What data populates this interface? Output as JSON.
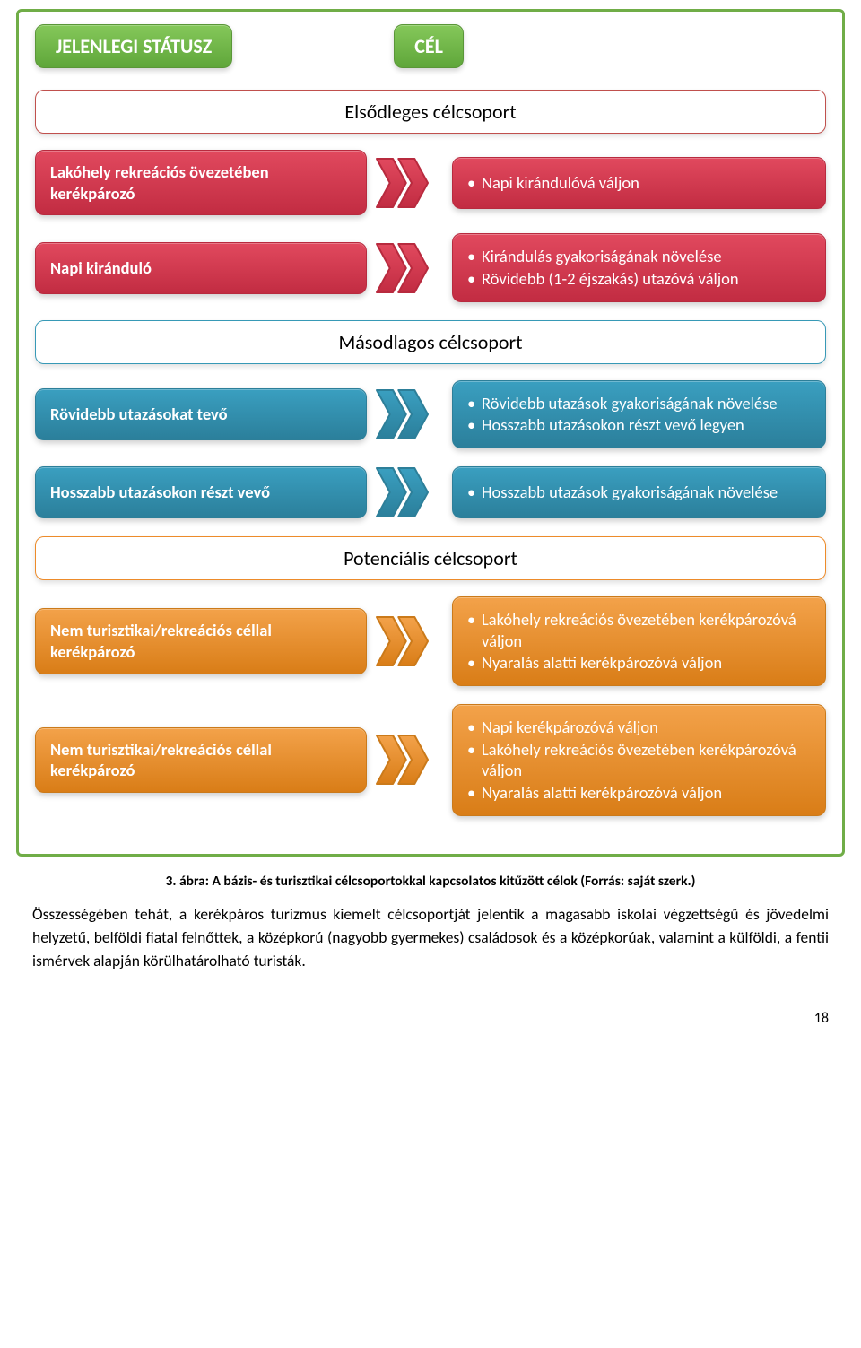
{
  "colors": {
    "frame_border": "#70ad47",
    "header_green_bg": "linear-gradient(#85c85a,#5fa63a)",
    "header_green_border": "#5a9638",
    "red_bg": "linear-gradient(#e1495e,#c22c42)",
    "red_stroke": "#b82a3e",
    "red_band_border": "#c0504d",
    "teal_bg": "linear-gradient(#3a9fc0,#2b7f9b)",
    "teal_stroke": "#2d7f99",
    "teal_band_border": "#3799b6",
    "orange_bg": "linear-gradient(#f3a24a,#d97d17)",
    "orange_stroke": "#cb7a1a",
    "orange_band_border": "#ed8b2a"
  },
  "header": {
    "status": "JELENLEGI STÁTUSZ",
    "goal": "CÉL"
  },
  "sections": [
    {
      "band": "Elsődleges célcsoport",
      "band_border_key": "red_band_border",
      "color_bg_key": "red_bg",
      "color_stroke_key": "red_stroke",
      "rows": [
        {
          "left": "Lakóhely rekreációs övezetében kerékpározó",
          "right": [
            "Napi kirándulóvá váljon"
          ]
        },
        {
          "left": "Napi kiránduló",
          "right": [
            "Kirándulás gyakoriságának növelése",
            "Rövidebb (1-2 éjszakás) utazóvá váljon"
          ]
        }
      ]
    },
    {
      "band": "Másodlagos célcsoport",
      "band_border_key": "teal_band_border",
      "color_bg_key": "teal_bg",
      "color_stroke_key": "teal_stroke",
      "rows": [
        {
          "left": "Rövidebb utazásokat tevő",
          "right": [
            "Rövidebb utazások gyakoriságának növelése",
            "Hosszabb utazásokon részt vevő legyen"
          ]
        },
        {
          "left": "Hosszabb utazásokon részt vevő",
          "right": [
            "Hosszabb utazások gyakoriságának növelése"
          ]
        }
      ]
    },
    {
      "band": "Potenciális célcsoport",
      "band_border_key": "orange_band_border",
      "color_bg_key": "orange_bg",
      "color_stroke_key": "orange_stroke",
      "rows": [
        {
          "left": "Nem turisztikai/rekreációs céllal kerékpározó",
          "right": [
            "Lakóhely rekreációs övezetében kerékpározóvá váljon",
            "Nyaralás alatti kerékpározóvá váljon"
          ]
        },
        {
          "left": "Nem turisztikai/rekreációs céllal kerékpározó",
          "right": [
            "Napi kerékpározóvá váljon",
            "Lakóhely rekreációs övezetében kerékpározóvá váljon",
            "Nyaralás alatti kerékpározóvá váljon"
          ]
        }
      ]
    }
  ],
  "caption": "3. ábra: A bázis- és turisztikai célcsoportokkal kapcsolatos kitűzött célok (Forrás: saját szerk.)",
  "paragraph": "Összességében tehát, a kerékpáros turizmus kiemelt célcsoportját jelentik a magasabb iskolai végzettségű és jövedelmi helyzetű, belföldi fiatal felnőttek, a középkorú (nagyobb gyermekes) családosok és a középkorúak, valamint a külföldi, a fentii ismérvek alapján körülhatárolható turisták.",
  "page_number": "18",
  "chevron": {
    "width": 78,
    "height": 58,
    "stroke_width": 2
  }
}
